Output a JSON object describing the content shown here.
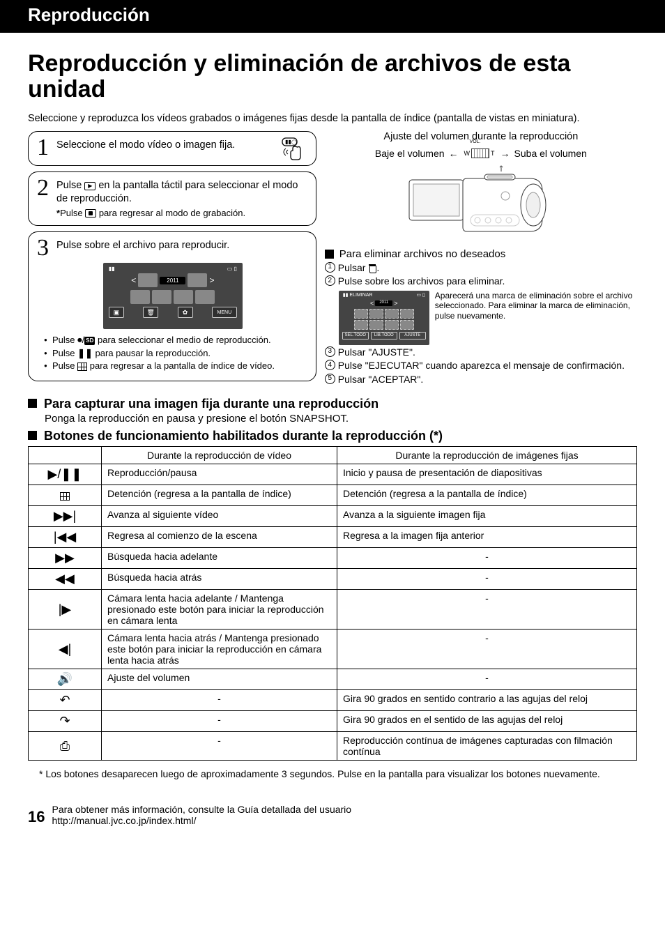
{
  "section_title": "Reproducción",
  "main_title": "Reproducción y eliminación de archivos de esta unidad",
  "intro": "Seleccione y reproduzca los vídeos grabados o imágenes fijas desde la pantalla de índice (pantalla de vistas en miniatura).",
  "steps": {
    "s1": {
      "num": "1",
      "text": "Seleccione el modo vídeo o imagen fija."
    },
    "s2": {
      "num": "2",
      "text_a": "Pulse ",
      "text_b": " en la pantalla táctil para seleccionar el modo de reproducción.",
      "note_a": "Pulse ",
      "note_b": " para regresar al modo de grabación.",
      "asterisk": "*"
    },
    "s3": {
      "num": "3",
      "text": "Pulse sobre el archivo para reproducir.",
      "screen": {
        "year": "2011",
        "menu": "MENU",
        "topicon1": "▮▮",
        "topicon2": "⏻"
      },
      "b1_a": "Pulse ",
      "b1_b": " para seleccionar el medio de reproducción.",
      "b2_a": "Pulse ",
      "b2_b": " para pausar la reproducción.",
      "b3_a": "Pulse ",
      "b3_b": " para regresar a la pantalla de índice de vídeo."
    }
  },
  "volume": {
    "title": "Ajuste del volumen durante la reproducción",
    "down": "Baje el volumen",
    "up": "Suba el volumen",
    "vol_label": "VOL.",
    "w": "W",
    "t": "T"
  },
  "delete": {
    "heading": "Para eliminar archivos no deseados",
    "d1_a": "Pulsar ",
    "d1_b": ".",
    "d2": "Pulse sobre los archivos para eliminar.",
    "screen": {
      "title": "ELIMINAR",
      "year": "2011",
      "btn1": "SEL.TODO",
      "btn2": "LIB.TODO",
      "btn3": "AJUSTE"
    },
    "note": "Aparecerá una marca de eliminación sobre el archivo seleccionado. Para eliminar la marca de eliminación, pulse nuevamente.",
    "d3": "Pulsar \"AJUSTE\".",
    "d4": "Pulse \"EJECUTAR\" cuando aparezca el mensaje de confirmación.",
    "d5": "Pulsar \"ACEPTAR\"."
  },
  "capture": {
    "title": "Para capturar una imagen fija durante una reproducción",
    "text": "Ponga la reproducción en pausa y presione el botón SNAPSHOT."
  },
  "buttons_section": {
    "title": "Botones de funcionamiento habilitados durante la reproducción (*)",
    "headers": {
      "col2": "Durante la reproducción de vídeo",
      "col3": "Durante la reproducción de imágenes fijas"
    },
    "rows": [
      {
        "icon": "▶/❚❚",
        "video": "Reproducción/pausa",
        "still": "Inicio y pausa de presentación de diapositivas"
      },
      {
        "icon": "grid",
        "video": "Detención (regresa a la pantalla de índice)",
        "still": "Detención (regresa a la pantalla de índice)"
      },
      {
        "icon": "▶▶|",
        "video": "Avanza al siguiente vídeo",
        "still": "Avanza a la siguiente imagen fija"
      },
      {
        "icon": "|◀◀",
        "video": "Regresa al comienzo de la escena",
        "still": "Regresa a la imagen fija anterior"
      },
      {
        "icon": "▶▶",
        "video": "Búsqueda hacia adelante",
        "still": "-"
      },
      {
        "icon": "◀◀",
        "video": "Búsqueda hacia atrás",
        "still": "-"
      },
      {
        "icon": "|▶",
        "video": "Cámara lenta hacia adelante / Mantenga presionado este botón para iniciar la reproducción en cámara lenta",
        "still": "-"
      },
      {
        "icon": "◀|",
        "video": "Cámara lenta hacia atrás / Mantenga presionado este botón para iniciar la reproducción en cámara lenta hacia atrás",
        "still": "-"
      },
      {
        "icon": "🔊",
        "video": "Ajuste del volumen",
        "still": "-"
      },
      {
        "icon": "↶",
        "video": "-",
        "still": "Gira 90 grados en sentido contrario a las agujas del reloj"
      },
      {
        "icon": "↷",
        "video": "-",
        "still": "Gira 90 grados en el sentido de las agujas del reloj"
      },
      {
        "icon": "⎙",
        "video": "-",
        "still": "Reproducción contínua de imágenes capturadas con filmación contínua"
      }
    ],
    "footnote": "*  Los botones desaparecen luego de aproximadamente 3 segundos. Pulse en la pantalla para visualizar los botones nuevamente."
  },
  "footer": {
    "page": "16",
    "line1": "Para obtener más información, consulte la Guía detallada del usuario",
    "line2": "http://manual.jvc.co.jp/index.html/"
  },
  "colors": {
    "black": "#000000",
    "white": "#ffffff",
    "screen_bg": "#444444",
    "thumb_bg": "#888888"
  }
}
